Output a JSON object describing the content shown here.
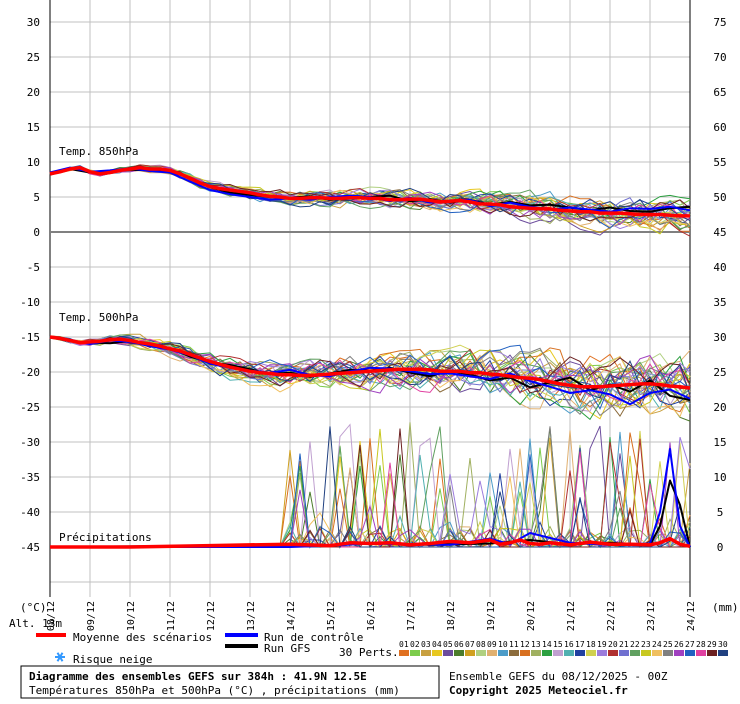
{
  "chart_data": {
    "type": "line",
    "title": "Diagramme des ensembles GEFS sur 384h : 41.9N 12.5E",
    "subtitle": "Températures 850hPa et 500hPa (°C) , précipitations (mm)",
    "run_info": "Ensemble GEFS du 08/12/2025 - 00Z",
    "copyright": "Copyright 2025 Meteociel.fr",
    "altitude": "Alt. 13m",
    "left_unit": "(°C)",
    "right_unit": "(mm)",
    "left_ticks": [
      "30",
      "25",
      "20",
      "15",
      "10",
      "5",
      "0",
      "-5",
      "-10",
      "-15",
      "-20",
      "-25",
      "-30",
      "-35",
      "-40",
      "-45"
    ],
    "right_ticks": [
      "75",
      "70",
      "65",
      "60",
      "55",
      "50",
      "45",
      "40",
      "35",
      "30",
      "25",
      "20",
      "15",
      "10",
      "5",
      "0"
    ],
    "ylim_left": [
      -45,
      30
    ],
    "ylim_right": [
      0,
      75
    ],
    "x_hours_range": [
      0,
      384
    ],
    "x_dates": [
      "08/12",
      "09/12",
      "10/12",
      "11/12",
      "12/12",
      "13/12",
      "14/12",
      "15/12",
      "16/12",
      "17/12",
      "18/12",
      "19/12",
      "20/12",
      "21/12",
      "22/12",
      "23/12",
      "24/12"
    ],
    "section_labels": {
      "t850": "Temp. 850hPa",
      "t500": "Temp. 500hPa",
      "precip": "Précipitations"
    },
    "legend": {
      "mean": "Moyenne des scénarios",
      "control": "Run de contrôle",
      "gfs": "Run GFS",
      "snow": "Risque neige",
      "perts": "30 Perts."
    },
    "pert_numbers": [
      "01",
      "02",
      "03",
      "04",
      "05",
      "06",
      "07",
      "08",
      "09",
      "10",
      "11",
      "12",
      "13",
      "14",
      "15",
      "16",
      "17",
      "18",
      "19",
      "20",
      "21",
      "22",
      "23",
      "24",
      "25",
      "26",
      "27",
      "28",
      "29",
      "30"
    ],
    "pert_colors": [
      "#e07020",
      "#7ccc4c",
      "#c8a040",
      "#e8c820",
      "#6c4c9c",
      "#4c7c2c",
      "#d0a020",
      "#b0d080",
      "#e0b070",
      "#4c9cc8",
      "#8c6c3c",
      "#d87020",
      "#a0b060",
      "#2ca040",
      "#c0a0d0",
      "#50b0b0",
      "#2040a0",
      "#d0d050",
      "#9c7cdc",
      "#b03030",
      "#7070d0",
      "#60a060",
      "#c8c820",
      "#f0c060",
      "#808080",
      "#a040c0",
      "#2060c0",
      "#e040a0",
      "#6c2020",
      "#204080"
    ],
    "colors": {
      "mean": "#ff0000",
      "control": "#0000ff",
      "gfs": "#000000",
      "grid": "#c0c0c0",
      "zero_line": "#808080"
    },
    "series": [
      {
        "name": "Moyenne des scénarios",
        "group": "t850",
        "x": [
          0,
          6,
          12,
          18,
          24,
          30,
          36,
          42,
          48,
          54,
          60,
          66,
          72,
          78,
          84,
          90,
          96,
          102,
          108,
          114,
          120,
          126,
          132,
          138,
          144,
          150,
          156,
          162,
          168,
          174,
          180,
          186,
          192,
          198,
          204,
          210,
          216,
          222,
          228,
          234,
          240,
          246,
          252,
          258,
          264,
          270,
          276,
          282,
          288,
          294,
          300,
          306,
          312,
          318,
          324,
          330,
          336,
          342,
          348,
          354,
          360,
          366,
          372,
          378,
          384
        ],
        "values": [
          8.3,
          8.6,
          9.0,
          9.2,
          8.6,
          8.3,
          8.5,
          8.8,
          9.0,
          9.2,
          9.0,
          9.0,
          8.8,
          8.3,
          7.7,
          7.0,
          6.5,
          6.2,
          6.0,
          5.8,
          5.6,
          5.3,
          5.1,
          5.0,
          4.8,
          4.8,
          4.9,
          4.9,
          4.8,
          4.8,
          4.9,
          4.9,
          4.8,
          4.8,
          4.6,
          4.6,
          4.7,
          4.7,
          4.5,
          4.3,
          4.4,
          4.5,
          4.3,
          4.0,
          4.0,
          3.9,
          3.6,
          3.5,
          3.4,
          3.3,
          3.3,
          3.1,
          3.0,
          2.9,
          2.9,
          2.7,
          2.7,
          2.7,
          2.6,
          2.5,
          2.5,
          2.5,
          2.4,
          2.3,
          2.3
        ]
      },
      {
        "name": "Moyenne des scénarios",
        "group": "t500",
        "x": [
          0,
          6,
          12,
          18,
          24,
          30,
          36,
          42,
          48,
          54,
          60,
          66,
          72,
          78,
          84,
          90,
          96,
          102,
          108,
          114,
          120,
          126,
          132,
          138,
          144,
          150,
          156,
          162,
          168,
          174,
          180,
          186,
          192,
          198,
          204,
          210,
          216,
          222,
          228,
          234,
          240,
          246,
          252,
          258,
          264,
          270,
          276,
          282,
          288,
          294,
          300,
          306,
          312,
          318,
          324,
          330,
          336,
          342,
          348,
          354,
          360,
          366,
          372,
          378,
          384
        ],
        "values": [
          -15,
          -15.2,
          -15.5,
          -15.8,
          -15.7,
          -15.6,
          -15.4,
          -15.3,
          -15.5,
          -15.8,
          -16.0,
          -16.3,
          -16.7,
          -17.0,
          -17.5,
          -18.0,
          -18.5,
          -18.9,
          -19.3,
          -19.6,
          -19.9,
          -20.1,
          -20.2,
          -20.4,
          -20.4,
          -20.5,
          -20.5,
          -20.4,
          -20.3,
          -20.2,
          -20.1,
          -20.0,
          -19.9,
          -19.8,
          -19.7,
          -19.6,
          -19.6,
          -19.6,
          -19.7,
          -19.9,
          -19.9,
          -19.9,
          -20.1,
          -20.1,
          -20.3,
          -20.4,
          -20.6,
          -20.8,
          -20.9,
          -21.1,
          -21.4,
          -21.7,
          -21.9,
          -22.1,
          -22.1,
          -22.1,
          -22.0,
          -21.9,
          -21.8,
          -21.7,
          -21.7,
          -21.8,
          -22.0,
          -22.1,
          -22.3
        ]
      },
      {
        "name": "Moyenne des scénarios",
        "group": "precip",
        "x": [
          0,
          24,
          48,
          96,
          144,
          168,
          180,
          192,
          204,
          216,
          228,
          240,
          252,
          264,
          270,
          276,
          282,
          288,
          294,
          300,
          312,
          324,
          336,
          348,
          360,
          366,
          372,
          378,
          384
        ],
        "values": [
          0,
          0,
          0,
          0.2,
          0.4,
          0.2,
          0.6,
          0.5,
          0.6,
          0.3,
          0.5,
          0.8,
          0.6,
          1.0,
          0.4,
          0.6,
          1.0,
          0.5,
          0.4,
          0.6,
          0.3,
          0.7,
          0.4,
          0.4,
          0.3,
          0.6,
          1.2,
          0.4,
          0.1
        ]
      },
      {
        "name": "Run de contrôle",
        "group": "t850",
        "x": [
          0,
          12,
          24,
          36,
          48,
          60,
          72,
          84,
          96,
          108,
          120,
          132,
          144,
          156,
          168,
          180,
          192,
          204,
          216,
          228,
          240,
          252,
          264,
          276,
          288,
          300,
          312,
          324,
          336,
          348,
          360,
          372,
          384
        ],
        "values": [
          8.5,
          9.2,
          8.6,
          8.8,
          9.1,
          8.7,
          8.5,
          7.2,
          6.0,
          5.4,
          5.0,
          4.6,
          4.8,
          4.6,
          5.0,
          5.2,
          5.0,
          4.4,
          4.9,
          4.2,
          4.5,
          4.6,
          3.7,
          4.2,
          3.6,
          3.2,
          3.5,
          3.2,
          2.9,
          3.4,
          3.3,
          3.6,
          3.1
        ]
      },
      {
        "name": "Run de contrôle",
        "group": "t500",
        "x": [
          0,
          12,
          24,
          36,
          48,
          60,
          72,
          84,
          96,
          108,
          120,
          132,
          144,
          156,
          168,
          180,
          192,
          204,
          216,
          228,
          240,
          252,
          264,
          276,
          288,
          300,
          312,
          324,
          336,
          348,
          360,
          372,
          384
        ],
        "values": [
          -15,
          -15.4,
          -16.0,
          -15.5,
          -15.7,
          -16.3,
          -16.8,
          -17.6,
          -18.8,
          -19.4,
          -19.8,
          -20.1,
          -19.7,
          -20.4,
          -20.6,
          -19.9,
          -19.4,
          -19.5,
          -19.9,
          -20.3,
          -20.2,
          -20.6,
          -21.0,
          -20.2,
          -21.3,
          -22.1,
          -23.0,
          -22.6,
          -23.2,
          -24.6,
          -23.0,
          -22.5,
          -23.8
        ]
      },
      {
        "name": "Run de contrôle",
        "group": "precip",
        "x": [
          0,
          144,
          168,
          192,
          240,
          264,
          276,
          288,
          312,
          336,
          360,
          366,
          372,
          378,
          384
        ],
        "values": [
          0,
          0,
          0.2,
          0.5,
          0.3,
          1.2,
          0.4,
          2.0,
          0.6,
          0.3,
          0.5,
          5.0,
          14.0,
          3.0,
          0
        ]
      },
      {
        "name": "Run GFS",
        "group": "t850",
        "x": [
          0,
          12,
          24,
          36,
          48,
          60,
          72,
          84,
          96,
          108,
          120,
          132,
          144,
          156,
          168,
          180,
          192,
          204,
          216,
          228,
          240,
          252,
          264,
          276,
          288,
          300,
          312,
          324,
          336,
          348,
          360,
          372,
          384
        ],
        "values": [
          8.2,
          9.0,
          8.5,
          8.6,
          8.9,
          8.8,
          8.6,
          7.8,
          6.4,
          5.6,
          5.3,
          5.0,
          4.9,
          5.1,
          4.6,
          4.8,
          5.0,
          5.2,
          4.4,
          4.7,
          4.2,
          4.6,
          3.9,
          4.3,
          3.8,
          3.9,
          3.5,
          3.1,
          3.5,
          3.0,
          2.9,
          3.4,
          3.6
        ]
      },
      {
        "name": "Run GFS",
        "group": "t500",
        "x": [
          0,
          12,
          24,
          36,
          48,
          60,
          72,
          84,
          96,
          108,
          120,
          132,
          144,
          156,
          168,
          180,
          192,
          204,
          216,
          228,
          240,
          252,
          264,
          276,
          288,
          300,
          312,
          324,
          336,
          348,
          360,
          372,
          384
        ],
        "values": [
          -15,
          -15.6,
          -15.8,
          -15.9,
          -15.6,
          -16.0,
          -16.6,
          -17.8,
          -18.6,
          -19.0,
          -19.6,
          -20.3,
          -20.1,
          -20.7,
          -20.2,
          -19.7,
          -19.8,
          -19.4,
          -20.1,
          -20.6,
          -19.8,
          -20.4,
          -21.2,
          -20.8,
          -22.2,
          -21.5,
          -20.8,
          -22.6,
          -21.8,
          -22.8,
          -21.2,
          -23.4,
          -24.0
        ]
      },
      {
        "name": "Run GFS",
        "group": "precip",
        "x": [
          0,
          168,
          192,
          228,
          264,
          288,
          312,
          336,
          360,
          366,
          372,
          378,
          384
        ],
        "values": [
          0,
          0.3,
          0.6,
          0.3,
          0.5,
          1.0,
          0.4,
          0.6,
          0.3,
          3.0,
          9.5,
          6.0,
          0
        ]
      }
    ]
  }
}
